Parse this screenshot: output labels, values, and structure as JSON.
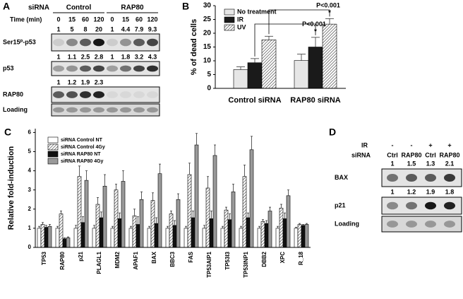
{
  "blot_a": {
    "panel_label": "A",
    "sirna_label": "siRNA",
    "groups": [
      "Control",
      "RAP80"
    ],
    "time_label": "Time (min)",
    "times": [
      "0",
      "15",
      "60",
      "120",
      "0",
      "15",
      "60",
      "120"
    ],
    "rows": [
      {
        "name": "Ser15ᴾ-p53",
        "quant": [
          1,
          5,
          8,
          20,
          1,
          4.4,
          7.9,
          9.3
        ]
      },
      {
        "name": "p53",
        "quant": [
          1,
          1.1,
          2.5,
          2.8,
          1,
          1.8,
          3.2,
          4.3
        ]
      },
      {
        "name": "RAP80",
        "quant": [
          1,
          1.2,
          1.9,
          2.3
        ]
      },
      {
        "name": "Loading"
      }
    ]
  },
  "blot_d": {
    "panel_label": "D",
    "ir_label": "IR",
    "ir": [
      "-",
      "-",
      "+",
      "+"
    ],
    "sirna_label": "siRNA",
    "sirna": [
      "Ctrl",
      "RAP80",
      "Ctrl",
      "RAP80"
    ],
    "rows": [
      {
        "name": "BAX",
        "quant": [
          1,
          1.5,
          1.3,
          2.1
        ]
      },
      {
        "name": "p21",
        "quant": [
          1,
          1.2,
          1.9,
          1.8
        ]
      },
      {
        "name": "Loading"
      }
    ]
  },
  "chart_data": [
    {
      "type": "bar",
      "panel_label": "B",
      "ylabel": "% of dead cells",
      "categories": [
        "Control siRNA",
        "RAP80 siRNA"
      ],
      "ylim": [
        0,
        30
      ],
      "yticks": [
        0,
        5,
        10,
        15,
        20,
        25,
        30
      ],
      "series": [
        {
          "name": "No treatment",
          "color": "#e6e6e6",
          "values": [
            6.8,
            10.1
          ],
          "errors": [
            1.0,
            2.3
          ]
        },
        {
          "name": "IR",
          "color": "#1a1a1a",
          "values": [
            9.3,
            15
          ],
          "errors": [
            1.5,
            3.5
          ]
        },
        {
          "name": "UV",
          "color": "#ffffff",
          "hatch": true,
          "values": [
            17.6,
            23.3
          ],
          "errors": [
            1.3,
            2.0
          ]
        }
      ],
      "annotations": [
        "*",
        "P<0.001",
        "*",
        "P<0.001"
      ]
    },
    {
      "type": "bar",
      "panel_label": "C",
      "ylabel": "Relative fold-induction",
      "categories": [
        "TP53",
        "RAP80",
        "p21",
        "PLAGL1",
        "MDM2",
        "APAF1",
        "BAX",
        "BBC3",
        "FAS",
        "TP53AIP1",
        "TP53I3",
        "TP53INP1",
        "DBB2",
        "XPC",
        "R_18"
      ],
      "ylim": [
        0,
        6.2
      ],
      "yticks": [
        0,
        1,
        2,
        3,
        4,
        5,
        6
      ],
      "series": [
        {
          "name": "siRNA Control NT",
          "color": "#ffffff",
          "values": [
            1,
            1,
            1,
            1,
            1,
            1,
            1,
            1,
            1,
            1,
            1,
            1,
            1,
            1,
            1
          ],
          "errors": [
            0.1,
            0.1,
            0.15,
            0.15,
            0.1,
            0.1,
            0.1,
            0.1,
            0.1,
            0.15,
            0.1,
            0.1,
            0.1,
            0.1,
            0.05
          ]
        },
        {
          "name": "siRNA Control 4Gy",
          "color": "#ffffff",
          "hatch": true,
          "values": [
            1.2,
            1.75,
            3.7,
            2.25,
            3.0,
            1.65,
            2.45,
            1.75,
            3.8,
            3.1,
            1.95,
            3.7,
            1.35,
            2.05,
            1.2
          ],
          "errors": [
            0.1,
            0.15,
            0.55,
            0.35,
            0.3,
            0.35,
            0.4,
            0.15,
            0.6,
            0.6,
            0.15,
            0.6,
            0.1,
            0.2,
            0.05
          ]
        },
        {
          "name": "siRNA RAP80 NT",
          "color": "#111111",
          "values": [
            1.05,
            0.45,
            1.3,
            1.55,
            1.5,
            1.2,
            1.25,
            1.15,
            1.55,
            1.5,
            1.45,
            1.55,
            1.25,
            1.5,
            1.15
          ],
          "errors": [
            0.1,
            0.05,
            0.3,
            0.3,
            0.3,
            0.4,
            0.3,
            0.25,
            0.35,
            0.4,
            0.3,
            0.25,
            0.15,
            0.3,
            0.05
          ]
        },
        {
          "name": "siRNA RAP80 4Gy",
          "color": "#9a9a9a",
          "values": [
            1.1,
            0.5,
            3.5,
            3.2,
            3.45,
            2.5,
            3.85,
            2.5,
            5.35,
            4.8,
            2.9,
            5.1,
            1.9,
            2.7,
            1.2
          ],
          "errors": [
            0.1,
            0.05,
            0.5,
            0.6,
            0.55,
            0.4,
            0.5,
            0.3,
            0.6,
            0.55,
            0.4,
            0.7,
            0.2,
            0.3,
            0.05
          ]
        }
      ]
    }
  ]
}
